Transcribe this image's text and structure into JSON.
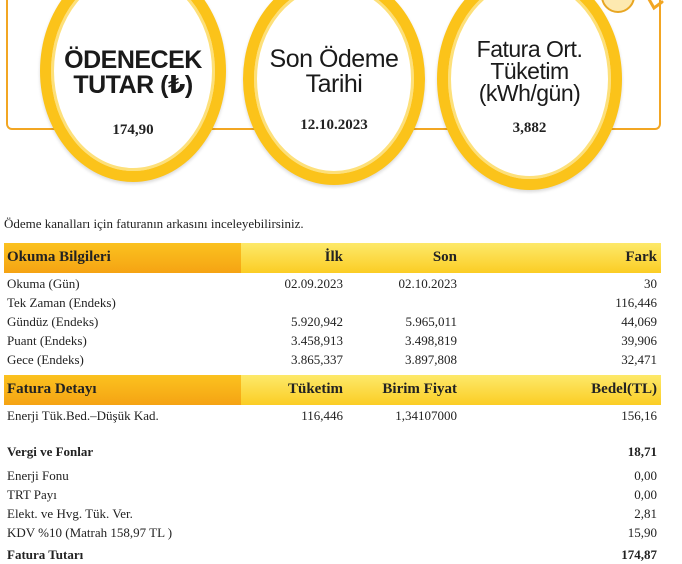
{
  "summary": {
    "amount_title": "ÖDENECEK TUTAR (₺)",
    "amount_value": "174,90",
    "due_title": "Son Ödeme Tarihi",
    "due_value": "12.10.2023",
    "consumption_title": "Fatura Ort. Tüketim (kWh/gün)",
    "consumption_value": "3,882"
  },
  "note": "Ödeme kanalları için faturanın arkasını inceleyebilirsiniz.",
  "reading": {
    "headers": [
      "Okuma Bilgileri",
      "İlk",
      "Son",
      "Fark"
    ],
    "rows": [
      [
        "Okuma (Gün)",
        "02.09.2023",
        "02.10.2023",
        "30"
      ],
      [
        "Tek Zaman (Endeks)",
        "",
        "",
        "116,446"
      ],
      [
        "Gündüz (Endeks)",
        "5.920,942",
        "5.965,011",
        "44,069"
      ],
      [
        "Puant (Endeks)",
        "3.458,913",
        "3.498,819",
        "39,906"
      ],
      [
        "Gece (Endeks)",
        "3.865,337",
        "3.897,808",
        "32,471"
      ]
    ]
  },
  "detail": {
    "headers": [
      "Fatura Detayı",
      "Tüketim",
      "Birim Fiyat",
      "Bedel(TL)"
    ],
    "rows": [
      [
        "Enerji Tük.Bed.–Düşük Kad.",
        "116,446",
        "1,34107000",
        "156,16"
      ]
    ]
  },
  "taxes": {
    "title": "Vergi ve Fonlar",
    "total": "18,71",
    "rows": [
      [
        "Enerji Fonu",
        "0,00"
      ],
      [
        "TRT Payı",
        "0,00"
      ],
      [
        "Elekt. ve Hvg. Tük. Ver.",
        "2,81"
      ],
      [
        "KDV %10 (Matrah 158,97  TL )",
        "15,90"
      ]
    ]
  },
  "invoice_total": {
    "label": "Fatura Tutarı",
    "value": "174,87"
  }
}
